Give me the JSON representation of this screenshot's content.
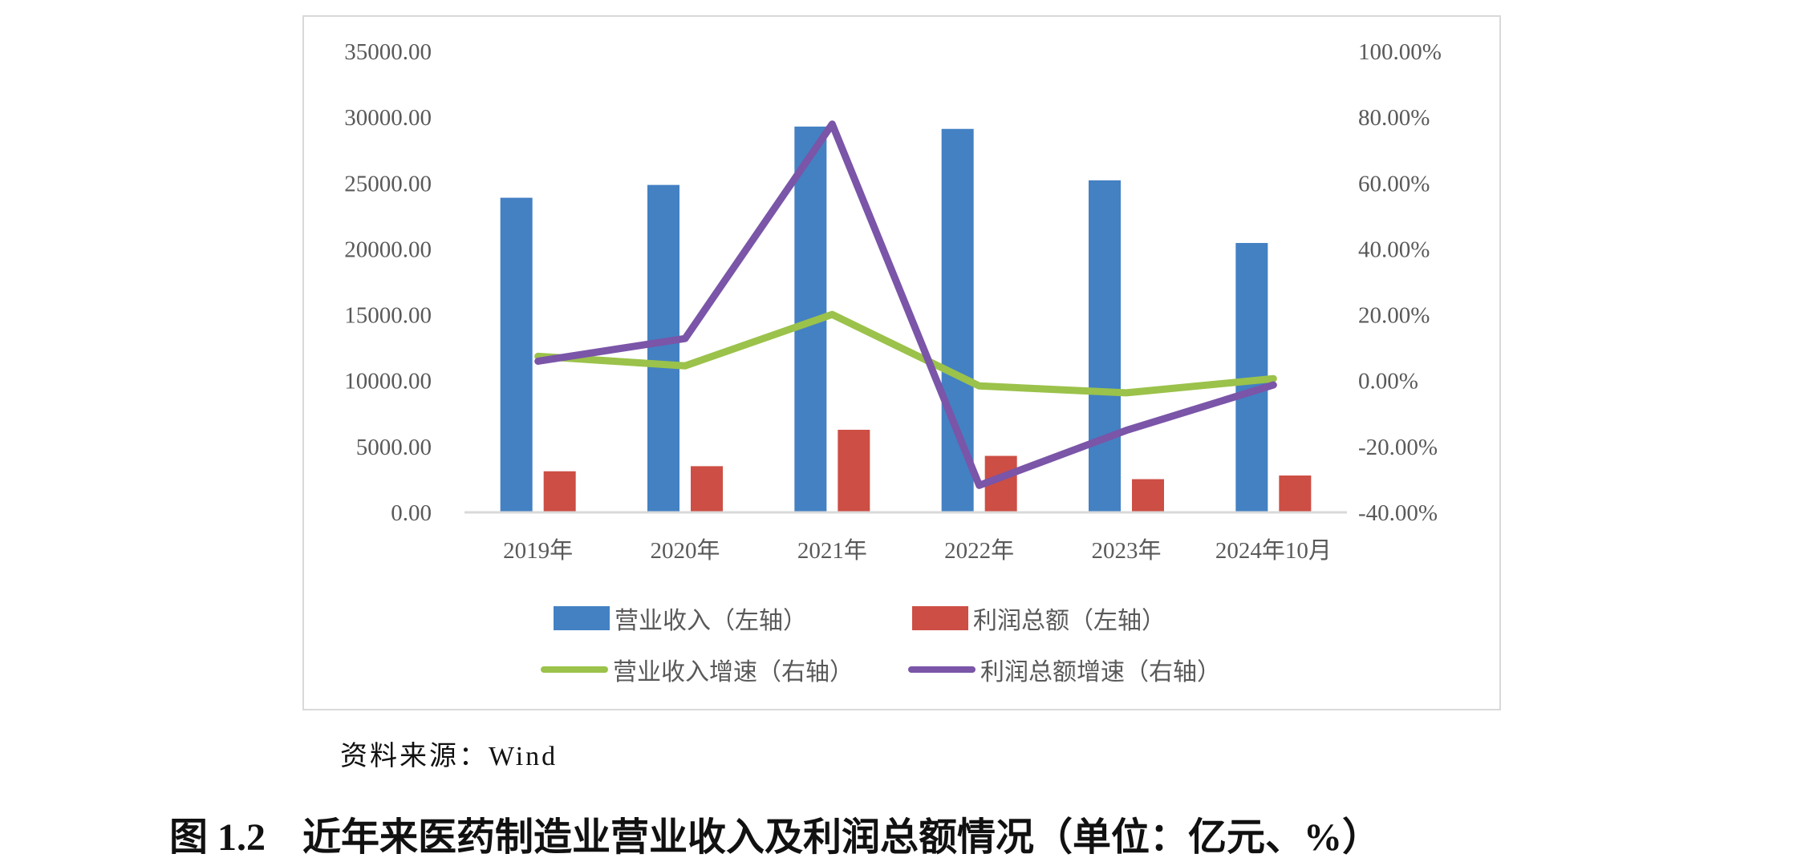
{
  "source_note": "资料来源：Wind",
  "caption": {
    "number": "图 1.2",
    "title": "近年来医药制造业营业收入及利润总额情况（单位：亿元、%）"
  },
  "legend": [
    {
      "label": "营业收入（左轴）",
      "type": "bar",
      "color": "#4381c3"
    },
    {
      "label": "利润总额（左轴）",
      "type": "bar",
      "color": "#cd4e44"
    },
    {
      "label": "营业收入增速（右轴）",
      "type": "line",
      "color": "#9bc24a"
    },
    {
      "label": "利润总额增速（右轴）",
      "type": "line",
      "color": "#7a55a8"
    }
  ],
  "chart_data": {
    "type": "bar",
    "title": "近年来医药制造业营业收入及利润总额情况（单位：亿元、%）",
    "categories": [
      "2019年",
      "2020年",
      "2021年",
      "2022年",
      "2023年",
      "2024年10月"
    ],
    "series": [
      {
        "name": "营业收入（左轴）",
        "type": "bar",
        "axis": "left",
        "color": "#4381c3",
        "values": [
          23885,
          24857,
          29288,
          29111,
          25206,
          20451
        ]
      },
      {
        "name": "利润总额（左轴）",
        "type": "bar",
        "axis": "left",
        "color": "#cd4e44",
        "values": [
          3120,
          3507,
          6271,
          4289,
          2522,
          2800
        ]
      },
      {
        "name": "营业收入增速（右轴）",
        "type": "line",
        "axis": "right",
        "color": "#9bc24a",
        "values": [
          7.4,
          4.5,
          20.1,
          -1.6,
          -3.7,
          0.6
        ]
      },
      {
        "name": "利润总额增速（右轴）",
        "type": "line",
        "axis": "right",
        "color": "#7a55a8",
        "values": [
          5.9,
          12.8,
          77.9,
          -31.8,
          -15.1,
          -1.3
        ]
      }
    ],
    "left_axis": {
      "min": 0,
      "max": 35000,
      "step": 5000,
      "ticks": [
        "0.00",
        "5000.00",
        "10000.00",
        "15000.00",
        "20000.00",
        "25000.00",
        "30000.00",
        "35000.00"
      ]
    },
    "right_axis": {
      "min": -40,
      "max": 100,
      "step": 20,
      "ticks": [
        "-40.00%",
        "-20.00%",
        "0.00%",
        "20.00%",
        "40.00%",
        "60.00%",
        "80.00%",
        "100.00%"
      ]
    },
    "xlabel": "",
    "ylabel": "",
    "grid": false,
    "legend_position": "bottom"
  }
}
